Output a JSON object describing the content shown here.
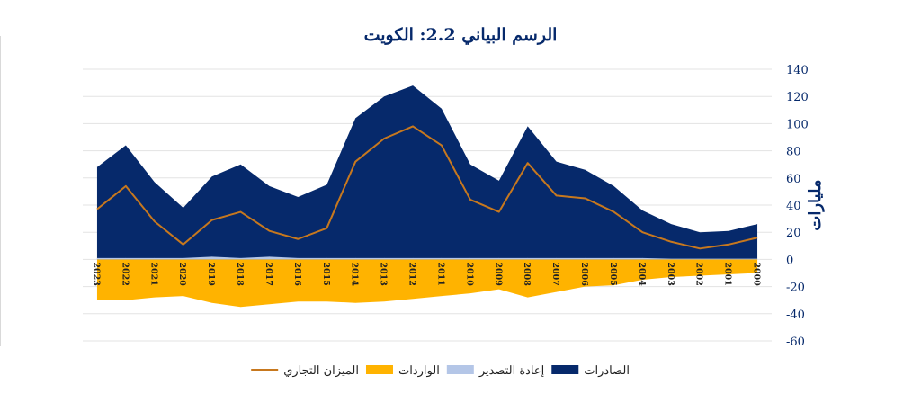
{
  "chart_data": {
    "type": "area",
    "title": "الرسم البياني 2.2: الكويت",
    "xlabel": "",
    "ylabel": "مليارات",
    "ylim": [
      -60,
      140
    ],
    "y_ticks": [
      140,
      120,
      100,
      80,
      60,
      40,
      20,
      0,
      -20,
      -40,
      -60
    ],
    "grid": true,
    "legend_position": "bottom",
    "categories": [
      "2023",
      "2022",
      "2021",
      "2020",
      "2019",
      "2018",
      "2017",
      "2016",
      "2015",
      "2014",
      "2013",
      "2012",
      "2011",
      "2010",
      "2009",
      "2008",
      "2007",
      "2006",
      "2005",
      "2004",
      "2003",
      "2002",
      "2001",
      "2000"
    ],
    "series": [
      {
        "name": "الصادرات",
        "kind": "area",
        "color": "#06296b",
        "values": [
          68,
          84,
          57,
          38,
          61,
          70,
          54,
          46,
          55,
          104,
          120,
          128,
          111,
          70,
          58,
          98,
          72,
          66,
          54,
          36,
          26,
          20,
          21,
          26
        ]
      },
      {
        "name": "الواردات",
        "kind": "area",
        "color": "#ffb300",
        "values": [
          -30,
          -30,
          -28,
          -27,
          -32,
          -35,
          -33,
          -31,
          -31,
          -32,
          -31,
          -29,
          -27,
          -25,
          -22,
          -28,
          -24,
          -20,
          -19,
          -15,
          -13,
          -12,
          -11,
          -10
        ]
      },
      {
        "name": "إعادة التصدير",
        "kind": "area",
        "color": "#b4c6e7",
        "values": [
          1,
          1,
          1,
          1,
          2,
          1,
          2,
          1,
          1,
          1,
          1,
          1,
          1,
          1,
          1,
          1,
          1,
          1,
          1,
          1,
          0.5,
          0.5,
          0.5,
          0.5
        ]
      },
      {
        "name": "الميزان التجاري",
        "kind": "line",
        "color": "#c7781e",
        "values": [
          37,
          54,
          28,
          11,
          29,
          35,
          21,
          15,
          23,
          72,
          89,
          98,
          84,
          44,
          35,
          71,
          47,
          45,
          35,
          20,
          13,
          8,
          11,
          16
        ]
      }
    ],
    "legend_order": [
      0,
      2,
      1,
      3
    ]
  }
}
